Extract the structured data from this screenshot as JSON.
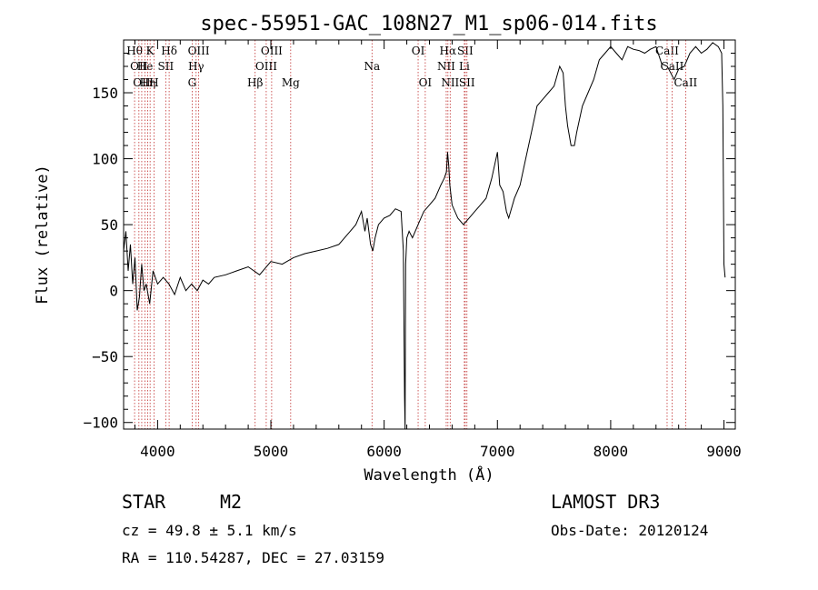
{
  "chart_data": {
    "type": "line",
    "title": "spec-55951-GAC_108N27_M1_sp06-014.fits",
    "xlabel": "Wavelength (Å)",
    "ylabel": "Flux (relative)",
    "xlim": [
      3700,
      9100
    ],
    "ylim": [
      -105,
      190
    ],
    "xticks": [
      4000,
      5000,
      6000,
      7000,
      8000,
      9000
    ],
    "xtick_labels": [
      "4000",
      "5000",
      "6000",
      "7000",
      "8000",
      "9000"
    ],
    "yticks": [
      -100,
      -50,
      0,
      50,
      100,
      150
    ],
    "ytick_labels": [
      "−100",
      "−50",
      "0",
      "50",
      "100",
      "150"
    ],
    "series": [
      {
        "name": "spectrum",
        "x": [
          3700,
          3720,
          3740,
          3760,
          3780,
          3800,
          3820,
          3840,
          3860,
          3880,
          3900,
          3930,
          3960,
          4000,
          4050,
          4100,
          4150,
          4200,
          4250,
          4300,
          4350,
          4400,
          4450,
          4500,
          4600,
          4700,
          4800,
          4900,
          5000,
          5100,
          5200,
          5300,
          5400,
          5500,
          5600,
          5700,
          5750,
          5800,
          5830,
          5850,
          5880,
          5900,
          5920,
          5950,
          6000,
          6050,
          6100,
          6150,
          6170,
          6180,
          6185,
          6190,
          6200,
          6220,
          6250,
          6300,
          6350,
          6400,
          6450,
          6500,
          6530,
          6550,
          6560,
          6570,
          6580,
          6600,
          6650,
          6700,
          6750,
          6800,
          6850,
          6900,
          6950,
          7000,
          7020,
          7050,
          7080,
          7100,
          7150,
          7200,
          7250,
          7300,
          7350,
          7400,
          7450,
          7500,
          7550,
          7580,
          7600,
          7620,
          7650,
          7680,
          7700,
          7750,
          7800,
          7850,
          7900,
          7950,
          8000,
          8050,
          8100,
          8150,
          8200,
          8250,
          8300,
          8350,
          8400,
          8450,
          8500,
          8530,
          8560,
          8600,
          8650,
          8700,
          8750,
          8800,
          8850,
          8900,
          8950,
          8980,
          8990,
          9000,
          9010
        ],
        "y": [
          30,
          45,
          15,
          35,
          5,
          25,
          -15,
          -5,
          20,
          0,
          5,
          -10,
          15,
          5,
          10,
          5,
          -3,
          10,
          0,
          5,
          0,
          8,
          5,
          10,
          12,
          15,
          18,
          12,
          22,
          20,
          25,
          28,
          30,
          32,
          35,
          45,
          50,
          60,
          45,
          55,
          35,
          30,
          40,
          50,
          55,
          57,
          62,
          60,
          30,
          -80,
          -110,
          20,
          40,
          45,
          40,
          50,
          60,
          65,
          70,
          80,
          85,
          90,
          105,
          95,
          80,
          65,
          55,
          50,
          55,
          60,
          65,
          70,
          85,
          105,
          80,
          75,
          60,
          55,
          70,
          80,
          100,
          120,
          140,
          145,
          150,
          155,
          170,
          165,
          140,
          125,
          110,
          110,
          120,
          140,
          150,
          160,
          175,
          180,
          185,
          180,
          175,
          185,
          183,
          182,
          180,
          183,
          185,
          172,
          170,
          165,
          160,
          168,
          170,
          180,
          185,
          180,
          183,
          188,
          185,
          180,
          140,
          20,
          10
        ]
      }
    ],
    "lines": [
      {
        "wl": 3797,
        "row": 0,
        "label": "Hθ"
      },
      {
        "wl": 3835,
        "row": 1,
        "label": "OII"
      },
      {
        "wl": 3860,
        "row": 2,
        "label": "OII"
      },
      {
        "wl": 3889,
        "row": 1,
        "label": "He"
      },
      {
        "wl": 3912,
        "row": 2,
        "label": "Hη"
      },
      {
        "wl": 3934,
        "row": 0,
        "label": "K"
      },
      {
        "wl": 3969,
        "row": 2,
        "label": "H"
      },
      {
        "wl": 4072,
        "row": 1,
        "label": "SII"
      },
      {
        "wl": 4102,
        "row": 0,
        "label": "Hδ"
      },
      {
        "wl": 4305,
        "row": 2,
        "label": "G"
      },
      {
        "wl": 4340,
        "row": 1,
        "label": "Hγ"
      },
      {
        "wl": 4363,
        "row": 0,
        "label": "OIII"
      },
      {
        "wl": 4861,
        "row": 2,
        "label": "Hβ"
      },
      {
        "wl": 4959,
        "row": 1,
        "label": "OIII"
      },
      {
        "wl": 5007,
        "row": 0,
        "label": "OIII"
      },
      {
        "wl": 5175,
        "row": 2,
        "label": "Mg"
      },
      {
        "wl": 5893,
        "row": 1,
        "label": "Na"
      },
      {
        "wl": 6300,
        "row": 0,
        "label": "OI"
      },
      {
        "wl": 6363,
        "row": 2,
        "label": "OI"
      },
      {
        "wl": 6548,
        "row": 1,
        "label": "NII"
      },
      {
        "wl": 6563,
        "row": 0,
        "label": "Hα"
      },
      {
        "wl": 6583,
        "row": 2,
        "label": "NII"
      },
      {
        "wl": 6708,
        "row": 1,
        "label": "Li"
      },
      {
        "wl": 6716,
        "row": 0,
        "label": "SII"
      },
      {
        "wl": 6731,
        "row": 2,
        "label": "SII"
      },
      {
        "wl": 8498,
        "row": 0,
        "label": "CaII"
      },
      {
        "wl": 8542,
        "row": 1,
        "label": "CaII"
      },
      {
        "wl": 8662,
        "row": 2,
        "label": "CaII"
      }
    ],
    "line_color": "#c03030"
  },
  "info": {
    "class": "STAR",
    "subclass": "M2",
    "survey": "LAMOST DR3",
    "cz": "cz = 49.8 ± 5.1 km/s",
    "obs_date": "Obs-Date: 20120124",
    "radec": "RA = 110.54287, DEC =  27.03159"
  }
}
